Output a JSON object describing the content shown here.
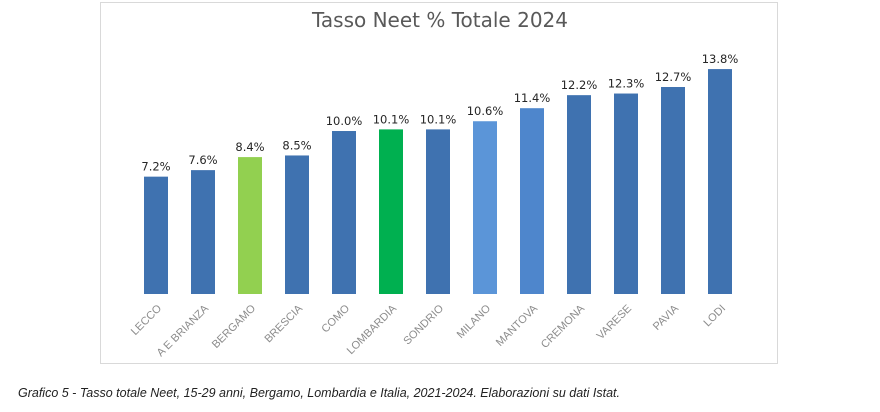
{
  "chart_data": {
    "type": "bar",
    "title": "Tasso Neet % Totale 2024",
    "xlabel": "",
    "ylabel": "",
    "ylim": [
      0,
      15.4
    ],
    "grid": false,
    "legend": "none",
    "categories": [
      "LECCO",
      "A E BRIANZA",
      "BERGAMO",
      "BRESCIA",
      "COMO",
      "LOMBARDIA",
      "SONDRIO",
      "MILANO",
      "MANTOVA",
      "CREMONA",
      "VARESE",
      "PAVIA",
      "LODI"
    ],
    "values": [
      7.2,
      7.6,
      8.4,
      8.5,
      10.0,
      10.1,
      10.1,
      10.6,
      11.4,
      12.2,
      12.3,
      12.7,
      13.8
    ],
    "value_labels": [
      "7.2%",
      "7.6%",
      "8.4%",
      "8.5%",
      "10.0%",
      "10.1%",
      "10.1%",
      "10.6%",
      "11.4%",
      "12.2%",
      "12.3%",
      "12.7%",
      "13.8%"
    ],
    "bar_colors": [
      "#3f72b0",
      "#3f72b0",
      "#92d050",
      "#3f72b0",
      "#3f72b0",
      "#00b050",
      "#3f72b0",
      "#5b95d8",
      "#4e86cc",
      "#3f72b0",
      "#3f72b0",
      "#3f72b0",
      "#3f72b0"
    ]
  },
  "caption": "Grafico 5 - Tasso totale Neet, 15-29 anni, Bergamo, Lombardia e Italia, 2021-2024. Elaborazioni su dati Istat."
}
